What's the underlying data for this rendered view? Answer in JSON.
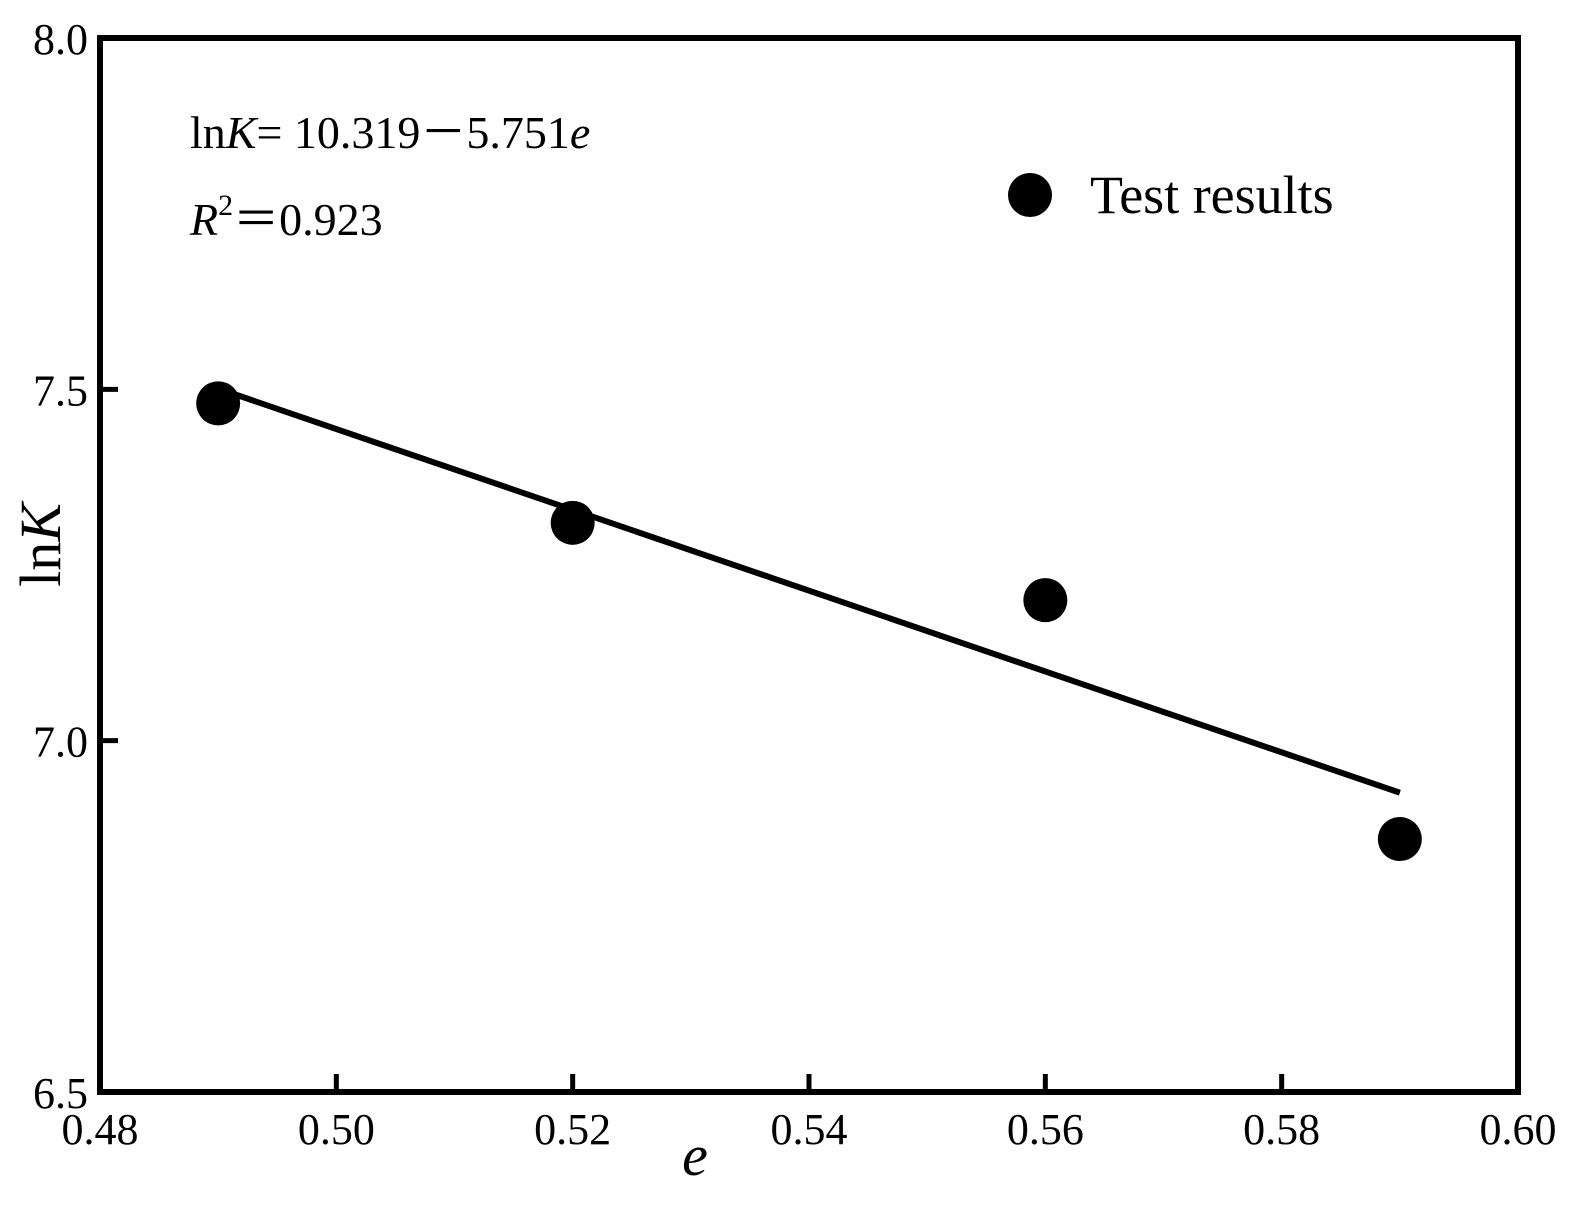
{
  "chart_data": {
    "type": "scatter",
    "xlabel": "e",
    "ylabel": "lnK",
    "xlim": [
      0.48,
      0.6
    ],
    "ylim": [
      6.5,
      8.0
    ],
    "x_ticks": [
      "0.48",
      "0.50",
      "0.52",
      "0.54",
      "0.56",
      "0.58",
      "0.60"
    ],
    "y_ticks": [
      "6.5",
      "7.0",
      "7.5",
      "8.0"
    ],
    "series": [
      {
        "name": "Test results",
        "x": [
          0.49,
          0.52,
          0.56,
          0.59
        ],
        "y": [
          7.48,
          7.31,
          7.2,
          6.86
        ]
      }
    ],
    "fit_line": {
      "intercept": 10.319,
      "slope": -5.751,
      "x_range": [
        0.49,
        0.59
      ]
    },
    "equation": {
      "lnK": "lnK",
      "K_italic": "K",
      "rest": "= 10.319－5.751",
      "e": "e"
    },
    "r_squared": {
      "R": "R",
      "sup": "2",
      "rest": "＝0.923"
    },
    "legend": {
      "label": "Test results",
      "placement": "top-right"
    },
    "grid": false,
    "colors": {
      "marker": "#000000",
      "line": "#000000",
      "frame": "#000000"
    }
  }
}
